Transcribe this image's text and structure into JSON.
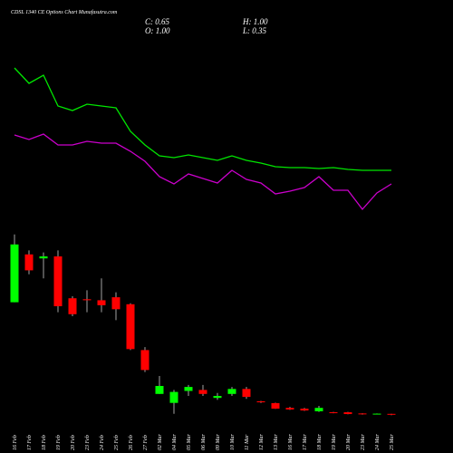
{
  "chart_data": {
    "type": "candlestick",
    "title": "CDSL 1340 CE Options Chart Munafasutra.com",
    "summary": {
      "close": "C: 0.65",
      "high": "H: 1.00",
      "open": "O: 1.00",
      "low": "L: 0.35"
    },
    "categories": [
      "16 Feb",
      "17 Feb",
      "18 Feb",
      "19 Feb",
      "20 Feb",
      "23 Feb",
      "24 Feb",
      "25 Feb",
      "26 Feb",
      "27 Feb",
      "02 Mar",
      "04 Mar",
      "05 Mar",
      "06 Mar",
      "09 Mar",
      "10 Mar",
      "11 Mar",
      "12 Mar",
      "13 Mar",
      "16 Mar",
      "17 Mar",
      "18 Mar",
      "19 Mar",
      "20 Mar",
      "23 Mar",
      "24 Mar",
      "25 Mar"
    ],
    "open": [
      57,
      81,
      79,
      80,
      59,
      58.5,
      58,
      59.5,
      56,
      33,
      11,
      6.5,
      12.5,
      13,
      9,
      11,
      13.5,
      7.3,
      6.4,
      4,
      3.6,
      2.3,
      1.8,
      1.8,
      1.2,
      0.8,
      1.0
    ],
    "high": [
      91,
      83,
      82,
      83,
      60,
      63,
      69,
      62,
      56.5,
      34.5,
      20,
      13,
      15.5,
      15.5,
      11.5,
      14.5,
      14.5,
      7.5,
      6.6,
      4.5,
      4,
      5,
      2,
      2,
      1.3,
      1.2,
      1.0
    ],
    "low": [
      57,
      71,
      69,
      52,
      50,
      52,
      52,
      48,
      33,
      22,
      11,
      1,
      10,
      10,
      8,
      10,
      8.5,
      6.5,
      3.5,
      3,
      2.5,
      2,
      1.3,
      0.8,
      0.6,
      0.7,
      0.35
    ],
    "close": [
      86,
      73,
      80,
      55,
      51,
      58,
      55.5,
      53.5,
      33.5,
      23,
      15,
      12,
      14.5,
      11,
      10,
      13.5,
      9.5,
      6.8,
      3.6,
      3.2,
      2.7,
      4,
      1.4,
      0.9,
      0.8,
      1.1,
      0.65
    ],
    "up_color": "#00ff00",
    "down_color": "#ff0000",
    "ylim": [
      0,
      92
    ],
    "y2lim": [
      0,
      100
    ],
    "lines": [
      {
        "color": "#00e600",
        "axis": "y2",
        "values": [
          92.5,
          84,
          88.5,
          71.5,
          69,
          72.5,
          71.5,
          70.5,
          57.5,
          50,
          44,
          43,
          44.5,
          43,
          41.5,
          44,
          41.5,
          40,
          38,
          37.5,
          37.5,
          37,
          37.5,
          36.5,
          36,
          36,
          36
        ]
      },
      {
        "color": "#cc00cc",
        "axis": "y2",
        "values": [
          55.5,
          53,
          56,
          50,
          50,
          52,
          51,
          51,
          46.5,
          41,
          32.5,
          28.5,
          34,
          31.5,
          29,
          36,
          31,
          29,
          23,
          24.5,
          26.5,
          32.5,
          25,
          25,
          14.5,
          23.5,
          28.5
        ]
      }
    ]
  }
}
